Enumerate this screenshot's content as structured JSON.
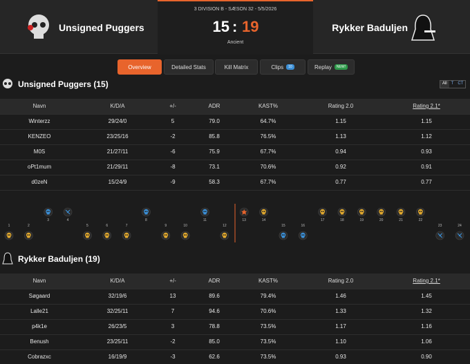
{
  "header": {
    "team1": "Unsigned Puggers",
    "team2": "Rykker Baduljen",
    "meta": "3 DIVISION B - SÆSON 32 - 5/5/2026",
    "score1": "15",
    "separator": ":",
    "score2": "19",
    "map": "Ancient"
  },
  "tabs": [
    {
      "label": "Overview",
      "active": true
    },
    {
      "label": "Detailed Stats"
    },
    {
      "label": "Kill Matrix"
    },
    {
      "label": "Clips",
      "badge": "10"
    },
    {
      "label": "Replay",
      "badge": "NEW!"
    }
  ],
  "filters": [
    "All",
    "T",
    "CT"
  ],
  "team1": {
    "title": "Unsigned Puggers (15)",
    "table": {
      "headers": [
        "Navn",
        "K/D/A",
        "+/-",
        "ADR",
        "KAST%",
        "Rating 2.0",
        "Rating 2.1*"
      ],
      "rows": [
        [
          "Winterzz",
          "29/24/0",
          "5",
          "79.0",
          "64.7%",
          "1.15",
          "1.15"
        ],
        [
          "KENZEO",
          "23/25/16",
          "-2",
          "85.8",
          "76.5%",
          "1.13",
          "1.12"
        ],
        [
          "M0S",
          "21/27/11",
          "-6",
          "75.9",
          "67.7%",
          "0.94",
          "0.93"
        ],
        [
          "oPt1mum",
          "21/29/11",
          "-8",
          "73.1",
          "70.6%",
          "0.92",
          "0.91"
        ],
        [
          "d0zeN",
          "15/24/9",
          "-9",
          "58.3",
          "67.7%",
          "0.77",
          "0.77"
        ]
      ]
    }
  },
  "rounds": [
    {
      "number": 1,
      "side": "bottom",
      "icon": "t-kill"
    },
    {
      "number": 2,
      "side": "bottom",
      "icon": "t-kill"
    },
    {
      "number": 3,
      "side": "top",
      "icon": "ct-kill"
    },
    {
      "number": 4,
      "side": "top",
      "icon": "ct-defuse"
    },
    {
      "number": 5,
      "side": "bottom",
      "icon": "t-kill"
    },
    {
      "number": 6,
      "side": "bottom",
      "icon": "t-kill"
    },
    {
      "number": 7,
      "side": "bottom",
      "icon": "t-kill"
    },
    {
      "number": 8,
      "side": "top",
      "icon": "ct-kill"
    },
    {
      "number": 9,
      "side": "bottom",
      "icon": "t-kill"
    },
    {
      "number": 10,
      "side": "bottom",
      "icon": "t-kill"
    },
    {
      "number": 11,
      "side": "top",
      "icon": "ct-kill"
    },
    {
      "number": 12,
      "side": "bottom",
      "icon": "t-kill"
    },
    {
      "number": 13,
      "side": "top",
      "icon": "t-bomb"
    },
    {
      "number": 14,
      "side": "top",
      "icon": "t-kill"
    },
    {
      "number": 15,
      "side": "bottom",
      "icon": "ct-kill"
    },
    {
      "number": 16,
      "side": "bottom",
      "icon": "ct-kill"
    },
    {
      "number": 17,
      "side": "top",
      "icon": "t-kill"
    },
    {
      "number": 18,
      "side": "top",
      "icon": "t-kill"
    },
    {
      "number": 19,
      "side": "top",
      "icon": "t-kill"
    },
    {
      "number": 20,
      "side": "top",
      "icon": "t-kill"
    },
    {
      "number": 21,
      "side": "top",
      "icon": "t-kill"
    },
    {
      "number": 22,
      "side": "top",
      "icon": "t-kill"
    },
    {
      "number": 23,
      "side": "bottom",
      "icon": "ct-defuse"
    },
    {
      "number": 24,
      "side": "bottom",
      "icon": "ct-defuse"
    }
  ],
  "team2": {
    "title": "Rykker Baduljen (19)",
    "table": {
      "headers": [
        "Navn",
        "K/D/A",
        "+/-",
        "ADR",
        "KAST%",
        "Rating 2.0",
        "Rating 2.1*"
      ],
      "rows": [
        [
          "Søgaard",
          "32/19/6",
          "13",
          "89.6",
          "79.4%",
          "1.46",
          "1.45"
        ],
        [
          "Lalle21",
          "32/25/11",
          "7",
          "94.6",
          "70.6%",
          "1.33",
          "1.32"
        ],
        [
          "p4k1e",
          "26/23/5",
          "3",
          "78.8",
          "73.5%",
          "1.17",
          "1.16"
        ],
        [
          "Benush",
          "23/25/11",
          "-2",
          "85.0",
          "73.5%",
          "1.10",
          "1.06"
        ],
        [
          "Cobrazxc",
          "16/19/9",
          "-3",
          "62.6",
          "73.5%",
          "0.93",
          "0.90"
        ]
      ]
    }
  }
}
